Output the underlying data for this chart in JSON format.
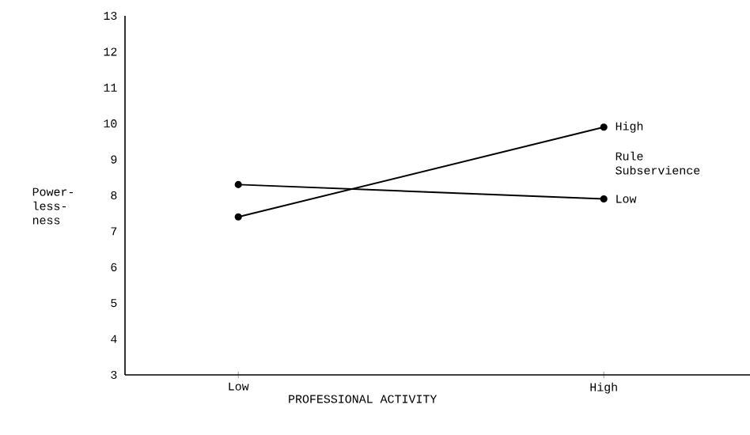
{
  "chart_data": {
    "type": "line",
    "xlabel": "PROFESSIONAL ACTIVITY",
    "ylabel": "Power- less- ness",
    "legend_title": "Rule Subservience",
    "categories": [
      "Low",
      "High"
    ],
    "series": [
      {
        "name": "High",
        "color": "#000000",
        "values": [
          7.4,
          9.9
        ]
      },
      {
        "name": "Low",
        "color": "#000000",
        "values": [
          8.3,
          7.9
        ]
      }
    ],
    "ylim": [
      3,
      13
    ],
    "yticks": [
      3,
      4,
      5,
      6,
      7,
      8,
      9,
      10,
      11,
      12,
      13
    ],
    "marker": "circle",
    "line_style": "solid",
    "grid": false,
    "legend": false
  }
}
